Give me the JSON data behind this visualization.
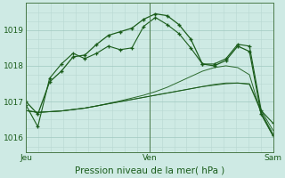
{
  "bg_color": "#ceeae4",
  "grid_color_minor": "#b8d8d2",
  "grid_color_major": "#a0c8c0",
  "line_color": "#1a5c1a",
  "spine_color": "#4a7a4a",
  "title": "Pression niveau de la mer( hPa )",
  "xtick_labels": [
    "Jeu",
    "Ven",
    "Sam"
  ],
  "xtick_positions": [
    0,
    1,
    2
  ],
  "ylim": [
    1015.6,
    1019.75
  ],
  "yticks": [
    1016,
    1017,
    1018,
    1019
  ],
  "n_points": 22,
  "xstart": 0,
  "xend": 2,
  "series": [
    {
      "y": [
        1016.9,
        1016.3,
        1017.65,
        1018.05,
        1018.35,
        1018.2,
        1018.35,
        1018.55,
        1018.45,
        1018.5,
        1019.1,
        1019.35,
        1019.15,
        1018.9,
        1018.5,
        1018.05,
        1018.05,
        1018.2,
        1018.6,
        1018.55,
        1016.75,
        1016.4
      ],
      "lw": 0.8,
      "marker": "+",
      "ms": 3.0,
      "mew": 0.9,
      "ls": "-",
      "alpha": 1.0
    },
    {
      "y": [
        1017.0,
        1016.65,
        1017.55,
        1017.85,
        1018.25,
        1018.3,
        1018.6,
        1018.85,
        1018.95,
        1019.05,
        1019.3,
        1019.45,
        1019.4,
        1019.15,
        1018.75,
        1018.05,
        1018.0,
        1018.15,
        1018.55,
        1018.4,
        1016.65,
        1016.05
      ],
      "lw": 0.9,
      "marker": "+",
      "ms": 3.5,
      "mew": 1.0,
      "ls": "-",
      "alpha": 1.0
    },
    {
      "y": [
        1016.75,
        1016.7,
        1016.72,
        1016.74,
        1016.78,
        1016.82,
        1016.88,
        1016.94,
        1017.0,
        1017.06,
        1017.12,
        1017.18,
        1017.24,
        1017.3,
        1017.36,
        1017.42,
        1017.46,
        1017.5,
        1017.52,
        1017.5,
        1016.75,
        1016.2
      ],
      "lw": 0.7,
      "marker": null,
      "ms": 0,
      "mew": 0,
      "ls": "-",
      "alpha": 0.9
    },
    {
      "y": [
        1016.75,
        1016.7,
        1016.72,
        1016.74,
        1016.78,
        1016.82,
        1016.88,
        1016.94,
        1017.0,
        1017.06,
        1017.12,
        1017.18,
        1017.24,
        1017.3,
        1017.36,
        1017.42,
        1017.48,
        1017.52,
        1017.52,
        1017.48,
        1016.7,
        1016.1
      ],
      "lw": 0.7,
      "marker": null,
      "ms": 0,
      "mew": 0,
      "ls": "-",
      "alpha": 0.9
    },
    {
      "y": [
        1016.75,
        1016.7,
        1016.72,
        1016.74,
        1016.78,
        1016.82,
        1016.88,
        1016.95,
        1017.02,
        1017.1,
        1017.18,
        1017.28,
        1017.4,
        1017.55,
        1017.7,
        1017.85,
        1017.95,
        1018.0,
        1017.95,
        1017.75,
        1016.65,
        1016.05
      ],
      "lw": 0.7,
      "marker": null,
      "ms": 0,
      "mew": 0,
      "ls": "-",
      "alpha": 0.9
    }
  ],
  "vlines": [
    0,
    1,
    2
  ]
}
